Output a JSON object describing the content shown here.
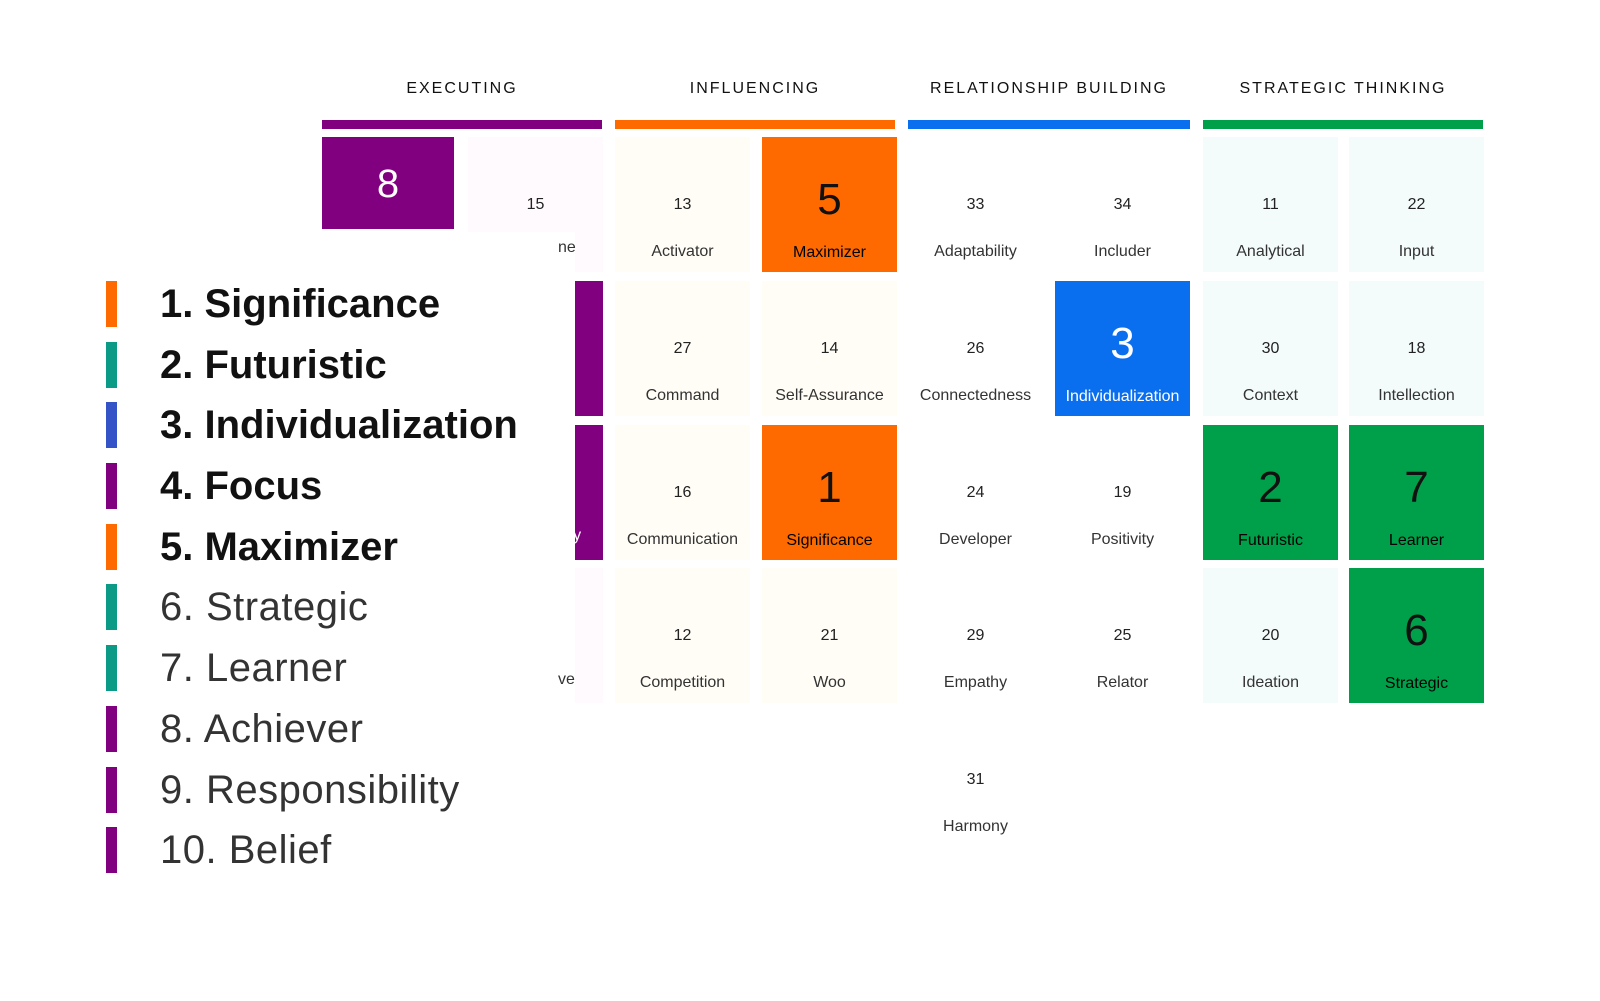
{
  "colors": {
    "executing": "#800080",
    "influencing": "#ff6a00",
    "relationship": "#0a6fef",
    "strategic": "#00a04a",
    "influencing_soft": "#fffdf5",
    "strategic_soft": "#f3fbfb",
    "executing_soft": "#fffafe",
    "legend_teal": "#0a9a85",
    "legend_blue": "#3353c7"
  },
  "domains": [
    {
      "key": "executing",
      "label": "EXECUTING"
    },
    {
      "key": "influencing",
      "label": "INFLUENCING"
    },
    {
      "key": "relationship",
      "label": "RELATIONSHIP BUILDING"
    },
    {
      "key": "strategic",
      "label": "STRATEGIC THINKING"
    }
  ],
  "tiles": {
    "executing_top": {
      "rank": "8"
    },
    "executing_15": {
      "rank": "15",
      "partial_name": "ne"
    },
    "executing_partial_row3": {
      "name": "ility"
    },
    "executing_partial_row4": {
      "name": "ve"
    },
    "influencing": [
      {
        "rank": "13",
        "name": "Activator"
      },
      {
        "rank": "5",
        "name": "Maximizer"
      },
      {
        "rank": "27",
        "name": "Command"
      },
      {
        "rank": "14",
        "name": "Self-Assurance"
      },
      {
        "rank": "16",
        "name": "Communication"
      },
      {
        "rank": "1",
        "name": "Significance"
      },
      {
        "rank": "12",
        "name": "Competition"
      },
      {
        "rank": "21",
        "name": "Woo"
      }
    ],
    "relationship": [
      {
        "rank": "33",
        "name": "Adaptability"
      },
      {
        "rank": "34",
        "name": "Includer"
      },
      {
        "rank": "26",
        "name": "Connectedness"
      },
      {
        "rank": "3",
        "name": "Individualization"
      },
      {
        "rank": "24",
        "name": "Developer"
      },
      {
        "rank": "19",
        "name": "Positivity"
      },
      {
        "rank": "29",
        "name": "Empathy"
      },
      {
        "rank": "25",
        "name": "Relator"
      },
      {
        "rank": "31",
        "name": "Harmony"
      }
    ],
    "strategic": [
      {
        "rank": "11",
        "name": "Analytical"
      },
      {
        "rank": "22",
        "name": "Input"
      },
      {
        "rank": "30",
        "name": "Context"
      },
      {
        "rank": "18",
        "name": "Intellection"
      },
      {
        "rank": "2",
        "name": "Futuristic"
      },
      {
        "rank": "7",
        "name": "Learner"
      },
      {
        "rank": "20",
        "name": "Ideation"
      },
      {
        "rank": "6",
        "name": "Strategic"
      }
    ]
  },
  "top_list": [
    {
      "label": "1. Significance"
    },
    {
      "label": "2. Futuristic"
    },
    {
      "label": "3. Individualization"
    },
    {
      "label": "4. Focus"
    },
    {
      "label": "5. Maximizer"
    },
    {
      "label": "6. Strategic"
    },
    {
      "label": "7. Learner"
    },
    {
      "label": "8. Achiever"
    },
    {
      "label": "9. Responsibility"
    },
    {
      "label": "10. Belief"
    }
  ]
}
